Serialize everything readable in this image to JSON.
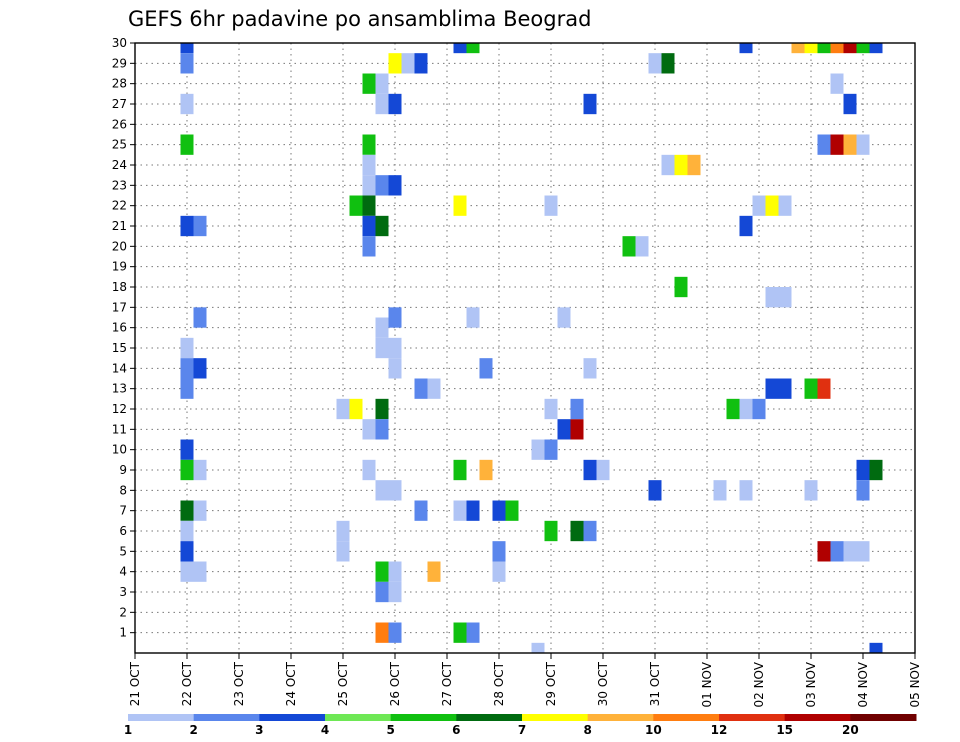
{
  "chart_data": {
    "type": "heatmap",
    "title": "GEFS 6hr padavine po ansamblima Beograd",
    "x_tick_labels": [
      "21 OCT",
      "22 OCT",
      "23 OCT",
      "24 OCT",
      "25 OCT",
      "26 OCT",
      "27 OCT",
      "28 OCT",
      "29 OCT",
      "30 OCT",
      "31 OCT",
      "01 NOV",
      "02 NOV",
      "03 NOV",
      "04 NOV",
      "05 NOV"
    ],
    "x_range_days": [
      0,
      15
    ],
    "y_tick_labels": [
      1,
      2,
      3,
      4,
      5,
      6,
      7,
      8,
      9,
      10,
      11,
      12,
      13,
      14,
      15,
      16,
      17,
      18,
      19,
      20,
      21,
      22,
      23,
      24,
      25,
      26,
      27,
      28,
      29,
      30
    ],
    "y_range": [
      0,
      30
    ],
    "grid": "dotted",
    "colorbar": {
      "position": "bottom",
      "tick_labels": [
        "1",
        "2",
        "3",
        "4",
        "5",
        "6",
        "7",
        "8",
        "10",
        "12",
        "15",
        "20"
      ],
      "levels": [
        1,
        2,
        3,
        4,
        5,
        6,
        7,
        8,
        10,
        12,
        15,
        20
      ],
      "colors": [
        "#b0c4f5",
        "#5a86ec",
        "#1448d6",
        "#6ee855",
        "#10c010",
        "#006b10",
        "#ffff00",
        "#ffb23a",
        "#ff7d10",
        "#e03010",
        "#b00000",
        "#700000"
      ]
    },
    "cells": [
      {
        "day": 1,
        "member": 30,
        "value": 3
      },
      {
        "day": 1,
        "member": 29,
        "value": 2
      },
      {
        "day": 1,
        "member": 27,
        "value": 1
      },
      {
        "day": 1,
        "member": 25,
        "value": 5
      },
      {
        "day": 1,
        "member": 21,
        "value": 3
      },
      {
        "day": 1.25,
        "member": 21,
        "value": 2
      },
      {
        "day": 1,
        "member": 15,
        "value": 1
      },
      {
        "day": 1.25,
        "member": 14,
        "value": 3
      },
      {
        "day": 1,
        "member": 14,
        "value": 2
      },
      {
        "day": 1,
        "member": 13,
        "value": 2
      },
      {
        "day": 1.25,
        "member": 16.5,
        "value": 2
      },
      {
        "day": 1,
        "member": 10,
        "value": 3
      },
      {
        "day": 1,
        "member": 9,
        "value": 5
      },
      {
        "day": 1.25,
        "member": 9,
        "value": 1
      },
      {
        "day": 1,
        "member": 7,
        "value": 6
      },
      {
        "day": 1.25,
        "member": 7,
        "value": 1
      },
      {
        "day": 1,
        "member": 6,
        "value": 1
      },
      {
        "day": 1,
        "member": 5,
        "value": 3
      },
      {
        "day": 1,
        "member": 4,
        "value": 1
      },
      {
        "day": 1.25,
        "member": 4,
        "value": 1
      },
      {
        "day": 4,
        "member": 12,
        "value": 1
      },
      {
        "day": 4.25,
        "member": 12,
        "value": 7
      },
      {
        "day": 4,
        "member": 6,
        "value": 1
      },
      {
        "day": 4,
        "member": 5,
        "value": 1
      },
      {
        "day": 4.5,
        "member": 28,
        "value": 5
      },
      {
        "day": 4.75,
        "member": 28,
        "value": 1
      },
      {
        "day": 4.75,
        "member": 27,
        "value": 1
      },
      {
        "day": 5,
        "member": 27,
        "value": 3
      },
      {
        "day": 4.5,
        "member": 25,
        "value": 5
      },
      {
        "day": 4.5,
        "member": 24,
        "value": 1
      },
      {
        "day": 4.5,
        "member": 23,
        "value": 1
      },
      {
        "day": 4.75,
        "member": 23,
        "value": 2
      },
      {
        "day": 5,
        "member": 23,
        "value": 3
      },
      {
        "day": 4.25,
        "member": 22,
        "value": 5
      },
      {
        "day": 4.5,
        "member": 22,
        "value": 6
      },
      {
        "day": 4.5,
        "member": 21,
        "value": 3
      },
      {
        "day": 4.75,
        "member": 21,
        "value": 6
      },
      {
        "day": 4.5,
        "member": 20,
        "value": 2
      },
      {
        "day": 4.75,
        "member": 16,
        "value": 1
      },
      {
        "day": 5,
        "member": 16.5,
        "value": 2
      },
      {
        "day": 4.75,
        "member": 15,
        "value": 1
      },
      {
        "day": 5,
        "member": 15,
        "value": 1
      },
      {
        "day": 5,
        "member": 14,
        "value": 1
      },
      {
        "day": 4.75,
        "member": 12,
        "value": 6
      },
      {
        "day": 4.5,
        "member": 11,
        "value": 1
      },
      {
        "day": 4.75,
        "member": 11,
        "value": 2
      },
      {
        "day": 4.5,
        "member": 9,
        "value": 1
      },
      {
        "day": 4.75,
        "member": 8,
        "value": 1
      },
      {
        "day": 5,
        "member": 8,
        "value": 1
      },
      {
        "day": 4.75,
        "member": 4,
        "value": 5
      },
      {
        "day": 5,
        "member": 4,
        "value": 1
      },
      {
        "day": 4.75,
        "member": 3,
        "value": 2
      },
      {
        "day": 5,
        "member": 3,
        "value": 1
      },
      {
        "day": 4.75,
        "member": 1,
        "value": 10
      },
      {
        "day": 5,
        "member": 1,
        "value": 2
      },
      {
        "day": 5,
        "member": 29,
        "value": 7
      },
      {
        "day": 5.25,
        "member": 29,
        "value": 1
      },
      {
        "day": 5.5,
        "member": 29,
        "value": 3
      },
      {
        "day": 5.5,
        "member": 13,
        "value": 2
      },
      {
        "day": 5.75,
        "member": 13,
        "value": 1
      },
      {
        "day": 5.5,
        "member": 7,
        "value": 2
      },
      {
        "day": 5.75,
        "member": 4,
        "value": 8
      },
      {
        "day": 6.25,
        "member": 30,
        "value": 3
      },
      {
        "day": 6.5,
        "member": 30,
        "value": 5
      },
      {
        "day": 6.25,
        "member": 22,
        "value": 7
      },
      {
        "day": 6.5,
        "member": 16.5,
        "value": 1
      },
      {
        "day": 6.75,
        "member": 14,
        "value": 2
      },
      {
        "day": 6.25,
        "member": 9,
        "value": 5
      },
      {
        "day": 6.75,
        "member": 9,
        "value": 8
      },
      {
        "day": 6.25,
        "member": 7,
        "value": 1
      },
      {
        "day": 6.5,
        "member": 7,
        "value": 3
      },
      {
        "day": 7,
        "member": 7,
        "value": 3
      },
      {
        "day": 7.25,
        "member": 7,
        "value": 5
      },
      {
        "day": 7,
        "member": 5,
        "value": 2
      },
      {
        "day": 7,
        "member": 4,
        "value": 1
      },
      {
        "day": 6.25,
        "member": 1,
        "value": 5
      },
      {
        "day": 6.5,
        "member": 1,
        "value": 2
      },
      {
        "day": 7.75,
        "member": 10,
        "value": 1
      },
      {
        "day": 8,
        "member": 10,
        "value": 2
      },
      {
        "day": 8,
        "member": 22,
        "value": 1
      },
      {
        "day": 8,
        "member": 12,
        "value": 1
      },
      {
        "day": 8.25,
        "member": 11,
        "value": 3
      },
      {
        "day": 8.5,
        "member": 11,
        "value": 15
      },
      {
        "day": 8.5,
        "member": 12,
        "value": 2
      },
      {
        "day": 8.25,
        "member": 16.5,
        "value": 1
      },
      {
        "day": 8.75,
        "member": 27,
        "value": 3
      },
      {
        "day": 8.75,
        "member": 14,
        "value": 1
      },
      {
        "day": 8.75,
        "member": 9,
        "value": 3
      },
      {
        "day": 9,
        "member": 9,
        "value": 1
      },
      {
        "day": 8,
        "member": 6,
        "value": 5
      },
      {
        "day": 8.5,
        "member": 6,
        "value": 6
      },
      {
        "day": 8.75,
        "member": 6,
        "value": 2
      },
      {
        "day": 7.75,
        "member": 0,
        "value": 1
      },
      {
        "day": 9.5,
        "member": 20,
        "value": 5
      },
      {
        "day": 9.75,
        "member": 20,
        "value": 1
      },
      {
        "day": 10,
        "member": 29,
        "value": 1
      },
      {
        "day": 10.25,
        "member": 29,
        "value": 6
      },
      {
        "day": 10.25,
        "member": 24,
        "value": 1
      },
      {
        "day": 10.5,
        "member": 24,
        "value": 7
      },
      {
        "day": 10.75,
        "member": 24,
        "value": 8
      },
      {
        "day": 10.5,
        "member": 18,
        "value": 5
      },
      {
        "day": 10,
        "member": 8,
        "value": 3
      },
      {
        "day": 11.5,
        "member": 12,
        "value": 5
      },
      {
        "day": 11.75,
        "member": 12,
        "value": 1
      },
      {
        "day": 12,
        "member": 12,
        "value": 2
      },
      {
        "day": 11.25,
        "member": 8,
        "value": 1
      },
      {
        "day": 11.75,
        "member": 8,
        "value": 1
      },
      {
        "day": 11.75,
        "member": 30,
        "value": 3
      },
      {
        "day": 11.75,
        "member": 21,
        "value": 3
      },
      {
        "day": 12,
        "member": 22,
        "value": 1
      },
      {
        "day": 12.25,
        "member": 22,
        "value": 7
      },
      {
        "day": 12.5,
        "member": 22,
        "value": 1
      },
      {
        "day": 12.25,
        "member": 17.5,
        "value": 1
      },
      {
        "day": 12.5,
        "member": 17.5,
        "value": 1
      },
      {
        "day": 12.25,
        "member": 13,
        "value": 3
      },
      {
        "day": 12.5,
        "member": 13,
        "value": 3
      },
      {
        "day": 12.75,
        "member": 30,
        "value": 8
      },
      {
        "day": 13,
        "member": 30,
        "value": 7
      },
      {
        "day": 13.25,
        "member": 30,
        "value": 5
      },
      {
        "day": 13.5,
        "member": 30,
        "value": 10
      },
      {
        "day": 13.75,
        "member": 30,
        "value": 15
      },
      {
        "day": 14,
        "member": 30,
        "value": 5
      },
      {
        "day": 14.25,
        "member": 30,
        "value": 3
      },
      {
        "day": 13.5,
        "member": 28,
        "value": 1
      },
      {
        "day": 13.75,
        "member": 27,
        "value": 3
      },
      {
        "day": 13.25,
        "member": 25,
        "value": 2
      },
      {
        "day": 13.5,
        "member": 25,
        "value": 15
      },
      {
        "day": 13.75,
        "member": 25,
        "value": 8
      },
      {
        "day": 14,
        "member": 25,
        "value": 1
      },
      {
        "day": 13,
        "member": 13,
        "value": 5
      },
      {
        "day": 13.25,
        "member": 13,
        "value": 12
      },
      {
        "day": 13,
        "member": 8,
        "value": 1
      },
      {
        "day": 14,
        "member": 9,
        "value": 3
      },
      {
        "day": 14.25,
        "member": 9,
        "value": 6
      },
      {
        "day": 14,
        "member": 8,
        "value": 2
      },
      {
        "day": 13.25,
        "member": 5,
        "value": 15
      },
      {
        "day": 13.5,
        "member": 5,
        "value": 2
      },
      {
        "day": 13.75,
        "member": 5,
        "value": 1
      },
      {
        "day": 14,
        "member": 5,
        "value": 1
      },
      {
        "day": 14.25,
        "member": 0,
        "value": 3
      }
    ]
  }
}
